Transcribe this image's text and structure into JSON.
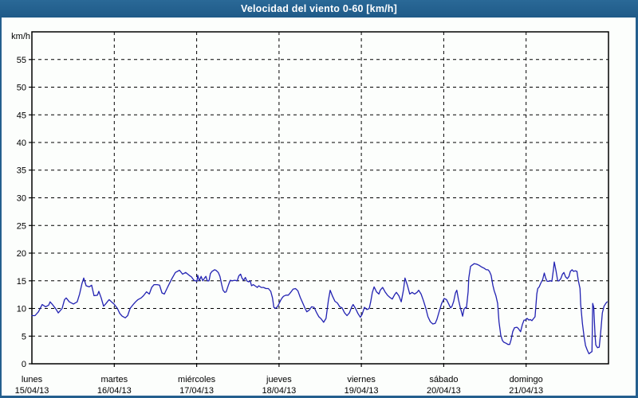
{
  "window": {
    "title": "Velocidad del viento 0-60 [km/h]"
  },
  "colors": {
    "title_bar": "#245f8e",
    "border": "#245f8e",
    "background": "#fcfefc",
    "grid": "#000000",
    "frame": "#000000",
    "text": "#000000",
    "line": "#2222b2"
  },
  "chart_data": {
    "type": "line",
    "title": "Velocidad del viento 0-60 [km/h]",
    "ylabel": "km/h",
    "xlabel": "",
    "ylim": [
      0,
      60
    ],
    "y_ticks": [
      0,
      5,
      10,
      15,
      20,
      25,
      30,
      35,
      40,
      45,
      50,
      55
    ],
    "grid": "dashed",
    "legend_position": "none",
    "x_axis": {
      "unit": "hours_from_start",
      "range_hours": [
        0,
        168
      ],
      "gridlines_hours": [
        24,
        48,
        72,
        96,
        120,
        144
      ],
      "days": [
        {
          "name": "lunes",
          "date": "15/04/13"
        },
        {
          "name": "martes",
          "date": "16/04/13"
        },
        {
          "name": "miércoles",
          "date": "17/04/13"
        },
        {
          "name": "jueves",
          "date": "18/04/13"
        },
        {
          "name": "viernes",
          "date": "19/04/13"
        },
        {
          "name": "sábado",
          "date": "20/04/13"
        },
        {
          "name": "domingo",
          "date": "21/04/13"
        }
      ]
    },
    "series": [
      {
        "name": "Velocidad del viento",
        "unit": "km/h",
        "color": "#2222b2",
        "points": [
          [
            0,
            8.7
          ],
          [
            0.9,
            8.7
          ],
          [
            1.9,
            9.4
          ],
          [
            3,
            10.7
          ],
          [
            4,
            10.3
          ],
          [
            4.9,
            10.6
          ],
          [
            5.3,
            11.2
          ],
          [
            6,
            10.7
          ],
          [
            7,
            9.9
          ],
          [
            7.7,
            9.2
          ],
          [
            8.8,
            10
          ],
          [
            9.5,
            11.6
          ],
          [
            10,
            11.9
          ],
          [
            10.9,
            11.2
          ],
          [
            12.1,
            10.8
          ],
          [
            13.2,
            11.2
          ],
          [
            13.9,
            12.6
          ],
          [
            14.6,
            14.5
          ],
          [
            15.1,
            15.5
          ],
          [
            15.8,
            14.1
          ],
          [
            16.7,
            13.9
          ],
          [
            17.4,
            14.2
          ],
          [
            18.1,
            12.3
          ],
          [
            19.1,
            12.4
          ],
          [
            19.5,
            13.1
          ],
          [
            20.2,
            11.9
          ],
          [
            20.9,
            10.4
          ],
          [
            21.6,
            10.9
          ],
          [
            22.5,
            11.6
          ],
          [
            23.2,
            11.2
          ],
          [
            23.9,
            10.8
          ],
          [
            24.9,
            10
          ],
          [
            25.6,
            9.1
          ],
          [
            26.3,
            8.6
          ],
          [
            27.2,
            8.3
          ],
          [
            27.9,
            8.7
          ],
          [
            28.6,
            10
          ],
          [
            29.5,
            10.7
          ],
          [
            30.2,
            11.2
          ],
          [
            30.9,
            11.6
          ],
          [
            31.8,
            11.9
          ],
          [
            32.5,
            12.3
          ],
          [
            33.4,
            13
          ],
          [
            34.2,
            12.6
          ],
          [
            34.9,
            13.8
          ],
          [
            35.6,
            14.3
          ],
          [
            36.5,
            14.3
          ],
          [
            37.2,
            14.2
          ],
          [
            37.9,
            12.8
          ],
          [
            38.6,
            12.6
          ],
          [
            39.5,
            13.8
          ],
          [
            40.7,
            15.3
          ],
          [
            41.8,
            16.5
          ],
          [
            43,
            16.9
          ],
          [
            43.9,
            16.2
          ],
          [
            44.8,
            16.5
          ],
          [
            45.8,
            16
          ],
          [
            46.5,
            15.7
          ],
          [
            47.2,
            15.1
          ],
          [
            48.1,
            14.9
          ],
          [
            48.3,
            16
          ],
          [
            48.8,
            15
          ],
          [
            49.3,
            15.8
          ],
          [
            49.8,
            15
          ],
          [
            50.3,
            15.5
          ],
          [
            50.7,
            15.8
          ],
          [
            51.1,
            15
          ],
          [
            51.6,
            15
          ],
          [
            52,
            16.3
          ],
          [
            52.5,
            16.7
          ],
          [
            53.2,
            17
          ],
          [
            53.6,
            16.9
          ],
          [
            54.3,
            16.5
          ],
          [
            54.8,
            15.8
          ],
          [
            55.3,
            14.3
          ],
          [
            55.7,
            13.3
          ],
          [
            56.2,
            12.9
          ],
          [
            56.6,
            13
          ],
          [
            57.3,
            14.3
          ],
          [
            57.8,
            15.1
          ],
          [
            58.4,
            15
          ],
          [
            59.1,
            15.1
          ],
          [
            59.8,
            15
          ],
          [
            60.3,
            15.9
          ],
          [
            60.8,
            16.2
          ],
          [
            61.2,
            15.5
          ],
          [
            61.7,
            15.1
          ],
          [
            62.2,
            15.6
          ],
          [
            62.6,
            15
          ],
          [
            63.1,
            14.8
          ],
          [
            63.6,
            15
          ],
          [
            64,
            14.1
          ],
          [
            64.5,
            14.3
          ],
          [
            65,
            14.1
          ],
          [
            65.7,
            13.8
          ],
          [
            66.1,
            14.1
          ],
          [
            66.8,
            13.8
          ],
          [
            67.5,
            13.8
          ],
          [
            68.2,
            13.6
          ],
          [
            68.9,
            13.6
          ],
          [
            69.6,
            13.1
          ],
          [
            70.1,
            11.9
          ],
          [
            70.5,
            10.2
          ],
          [
            71,
            10
          ],
          [
            71.5,
            10.3
          ],
          [
            71.9,
            10.7
          ],
          [
            72.4,
            11.4
          ],
          [
            72.9,
            11.9
          ],
          [
            73.3,
            12.2
          ],
          [
            74,
            12.4
          ],
          [
            74.7,
            12.4
          ],
          [
            75.4,
            12.9
          ],
          [
            76.1,
            13.5
          ],
          [
            76.8,
            13.6
          ],
          [
            77.5,
            13.2
          ],
          [
            78.2,
            12
          ],
          [
            78.9,
            11
          ],
          [
            79.6,
            10
          ],
          [
            80.1,
            9.4
          ],
          [
            80.8,
            9.7
          ],
          [
            81.5,
            10.3
          ],
          [
            82.2,
            10.2
          ],
          [
            82.9,
            9.3
          ],
          [
            83.6,
            8.5
          ],
          [
            84.3,
            8.1
          ],
          [
            85,
            7.5
          ],
          [
            85.7,
            8.2
          ],
          [
            86.4,
            11.5
          ],
          [
            86.9,
            13.3
          ],
          [
            87.6,
            12.2
          ],
          [
            88.3,
            11.3
          ],
          [
            89,
            11
          ],
          [
            89.7,
            10.3
          ],
          [
            90.4,
            10.1
          ],
          [
            91.1,
            9.2
          ],
          [
            91.8,
            8.7
          ],
          [
            92.5,
            9.2
          ],
          [
            93.2,
            10.3
          ],
          [
            93.6,
            10.7
          ],
          [
            94.3,
            10
          ],
          [
            95,
            9.1
          ],
          [
            95.7,
            8.4
          ],
          [
            96.2,
            8.9
          ],
          [
            96.9,
            10.2
          ],
          [
            97.6,
            9.8
          ],
          [
            98.3,
            10
          ],
          [
            98.7,
            11.2
          ],
          [
            99.2,
            12.9
          ],
          [
            99.7,
            13.9
          ],
          [
            100.4,
            13
          ],
          [
            101.1,
            12.6
          ],
          [
            101.5,
            13.3
          ],
          [
            102.2,
            13.8
          ],
          [
            102.9,
            13
          ],
          [
            103.6,
            12.4
          ],
          [
            104.3,
            12
          ],
          [
            105,
            11.7
          ],
          [
            105.7,
            12.5
          ],
          [
            106.2,
            12.9
          ],
          [
            106.9,
            12.3
          ],
          [
            107.6,
            11.2
          ],
          [
            108.3,
            13.5
          ],
          [
            108.7,
            15.5
          ],
          [
            109.4,
            14.2
          ],
          [
            110.1,
            12.6
          ],
          [
            110.8,
            12.9
          ],
          [
            111.5,
            12.6
          ],
          [
            112.2,
            12.9
          ],
          [
            112.7,
            13.3
          ],
          [
            113.4,
            12.6
          ],
          [
            114.1,
            11.4
          ],
          [
            114.8,
            10
          ],
          [
            115.4,
            8.5
          ],
          [
            116.1,
            7.6
          ],
          [
            116.8,
            7.2
          ],
          [
            117.5,
            7.3
          ],
          [
            118,
            8
          ],
          [
            118.7,
            9.5
          ],
          [
            119.4,
            10.9
          ],
          [
            120.1,
            11.8
          ],
          [
            120.8,
            11.6
          ],
          [
            121.3,
            11
          ],
          [
            122,
            10.1
          ],
          [
            122.4,
            10.4
          ],
          [
            122.9,
            11.3
          ],
          [
            123.4,
            12.8
          ],
          [
            123.8,
            13.3
          ],
          [
            124.3,
            11.6
          ],
          [
            124.8,
            10.2
          ],
          [
            125.5,
            8.6
          ],
          [
            125.9,
            9.9
          ],
          [
            126.4,
            10.2
          ],
          [
            126.6,
            10
          ],
          [
            127.1,
            13
          ],
          [
            127.3,
            15.5
          ],
          [
            127.8,
            17.6
          ],
          [
            128.2,
            17.8
          ],
          [
            128.9,
            18.1
          ],
          [
            129.6,
            18
          ],
          [
            130.3,
            17.8
          ],
          [
            131,
            17.5
          ],
          [
            131.7,
            17.3
          ],
          [
            132.4,
            17
          ],
          [
            132.9,
            17
          ],
          [
            133.3,
            16.7
          ],
          [
            133.8,
            16
          ],
          [
            134.3,
            14.2
          ],
          [
            134.7,
            13.2
          ],
          [
            135.2,
            12.3
          ],
          [
            135.7,
            10.9
          ],
          [
            136.1,
            7.6
          ],
          [
            136.6,
            5.2
          ],
          [
            137.1,
            4.2
          ],
          [
            137.5,
            3.9
          ],
          [
            138.2,
            3.7
          ],
          [
            138.7,
            3.5
          ],
          [
            139.2,
            3.5
          ],
          [
            139.6,
            4.3
          ],
          [
            140.1,
            5.8
          ],
          [
            140.6,
            6.5
          ],
          [
            141.3,
            6.6
          ],
          [
            141.7,
            6.4
          ],
          [
            142.4,
            5.8
          ],
          [
            142.9,
            7.1
          ],
          [
            143.4,
            7.9
          ],
          [
            143.8,
            7.9
          ],
          [
            144.3,
            8.2
          ],
          [
            144.8,
            7.9
          ],
          [
            145.2,
            8
          ],
          [
            145.7,
            7.8
          ],
          [
            146.2,
            8.2
          ],
          [
            146.6,
            8.5
          ],
          [
            147.1,
            12.6
          ],
          [
            147.4,
            13.6
          ],
          [
            147.8,
            13.9
          ],
          [
            148.3,
            14.6
          ],
          [
            148.8,
            15.2
          ],
          [
            149.3,
            16.4
          ],
          [
            149.7,
            15.5
          ],
          [
            150.1,
            14.9
          ],
          [
            150.6,
            14.9
          ],
          [
            151.1,
            15
          ],
          [
            151.5,
            14.9
          ],
          [
            152,
            17.2
          ],
          [
            152.2,
            18.4
          ],
          [
            152.7,
            16.8
          ],
          [
            153.2,
            15
          ],
          [
            153.6,
            15
          ],
          [
            154.1,
            15.4
          ],
          [
            154.6,
            16.2
          ],
          [
            155,
            16.5
          ],
          [
            155.5,
            15.7
          ],
          [
            156,
            15.4
          ],
          [
            156.5,
            15.8
          ],
          [
            156.9,
            16.7
          ],
          [
            157.4,
            17
          ],
          [
            157.8,
            16.7
          ],
          [
            158.3,
            16.8
          ],
          [
            158.8,
            16.7
          ],
          [
            159.2,
            15.1
          ],
          [
            159.7,
            13.6
          ],
          [
            159.9,
            10.8
          ],
          [
            160.4,
            7.3
          ],
          [
            160.9,
            4.9
          ],
          [
            161.3,
            3.3
          ],
          [
            161.8,
            2.5
          ],
          [
            162.3,
            1.8
          ],
          [
            162.7,
            2
          ],
          [
            163.2,
            2.2
          ],
          [
            163.4,
            10.9
          ],
          [
            163.7,
            10.2
          ],
          [
            164.1,
            5
          ],
          [
            164.3,
            3.4
          ],
          [
            164.8,
            2.9
          ],
          [
            165.3,
            3
          ],
          [
            165.7,
            5.5
          ],
          [
            166.2,
            9.2
          ],
          [
            166.7,
            10.4
          ],
          [
            167.2,
            10.9
          ],
          [
            167.6,
            11.2
          ]
        ]
      }
    ]
  }
}
